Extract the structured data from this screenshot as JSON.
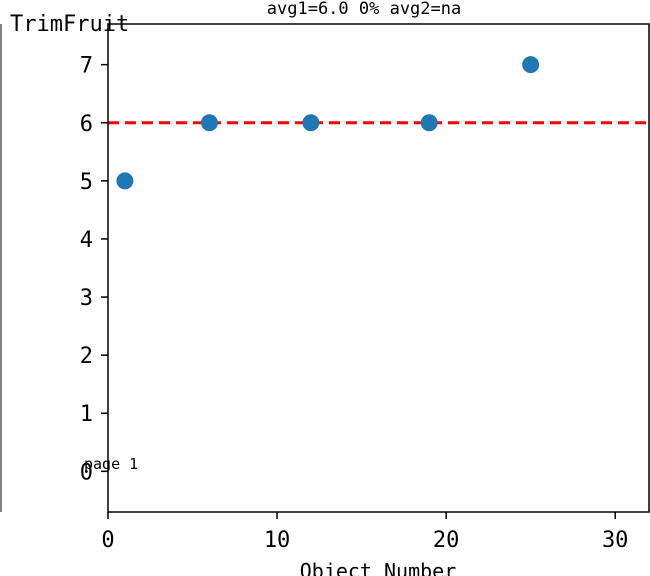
{
  "chart_data": {
    "type": "scatter",
    "title": "avg1=6.0 0% avg2=na",
    "ylabel": "TrimFruit",
    "xlabel": "Object Number",
    "annotation": "page 1",
    "xlim": [
      0,
      32
    ],
    "ylim": [
      -0.7,
      7.7
    ],
    "xticks": [
      0,
      10,
      20,
      30
    ],
    "yticks": [
      0,
      1,
      2,
      3,
      4,
      5,
      6,
      7
    ],
    "grid": false,
    "points": [
      {
        "x": 1,
        "y": 5
      },
      {
        "x": 6,
        "y": 6
      },
      {
        "x": 12,
        "y": 6
      },
      {
        "x": 19,
        "y": 6
      },
      {
        "x": 25,
        "y": 7
      }
    ],
    "reference_line": {
      "y": 6,
      "style": "dashed"
    },
    "colors": {
      "points": "#1f77b4",
      "reference_line": "#ff0000",
      "axes": "#000000"
    }
  }
}
